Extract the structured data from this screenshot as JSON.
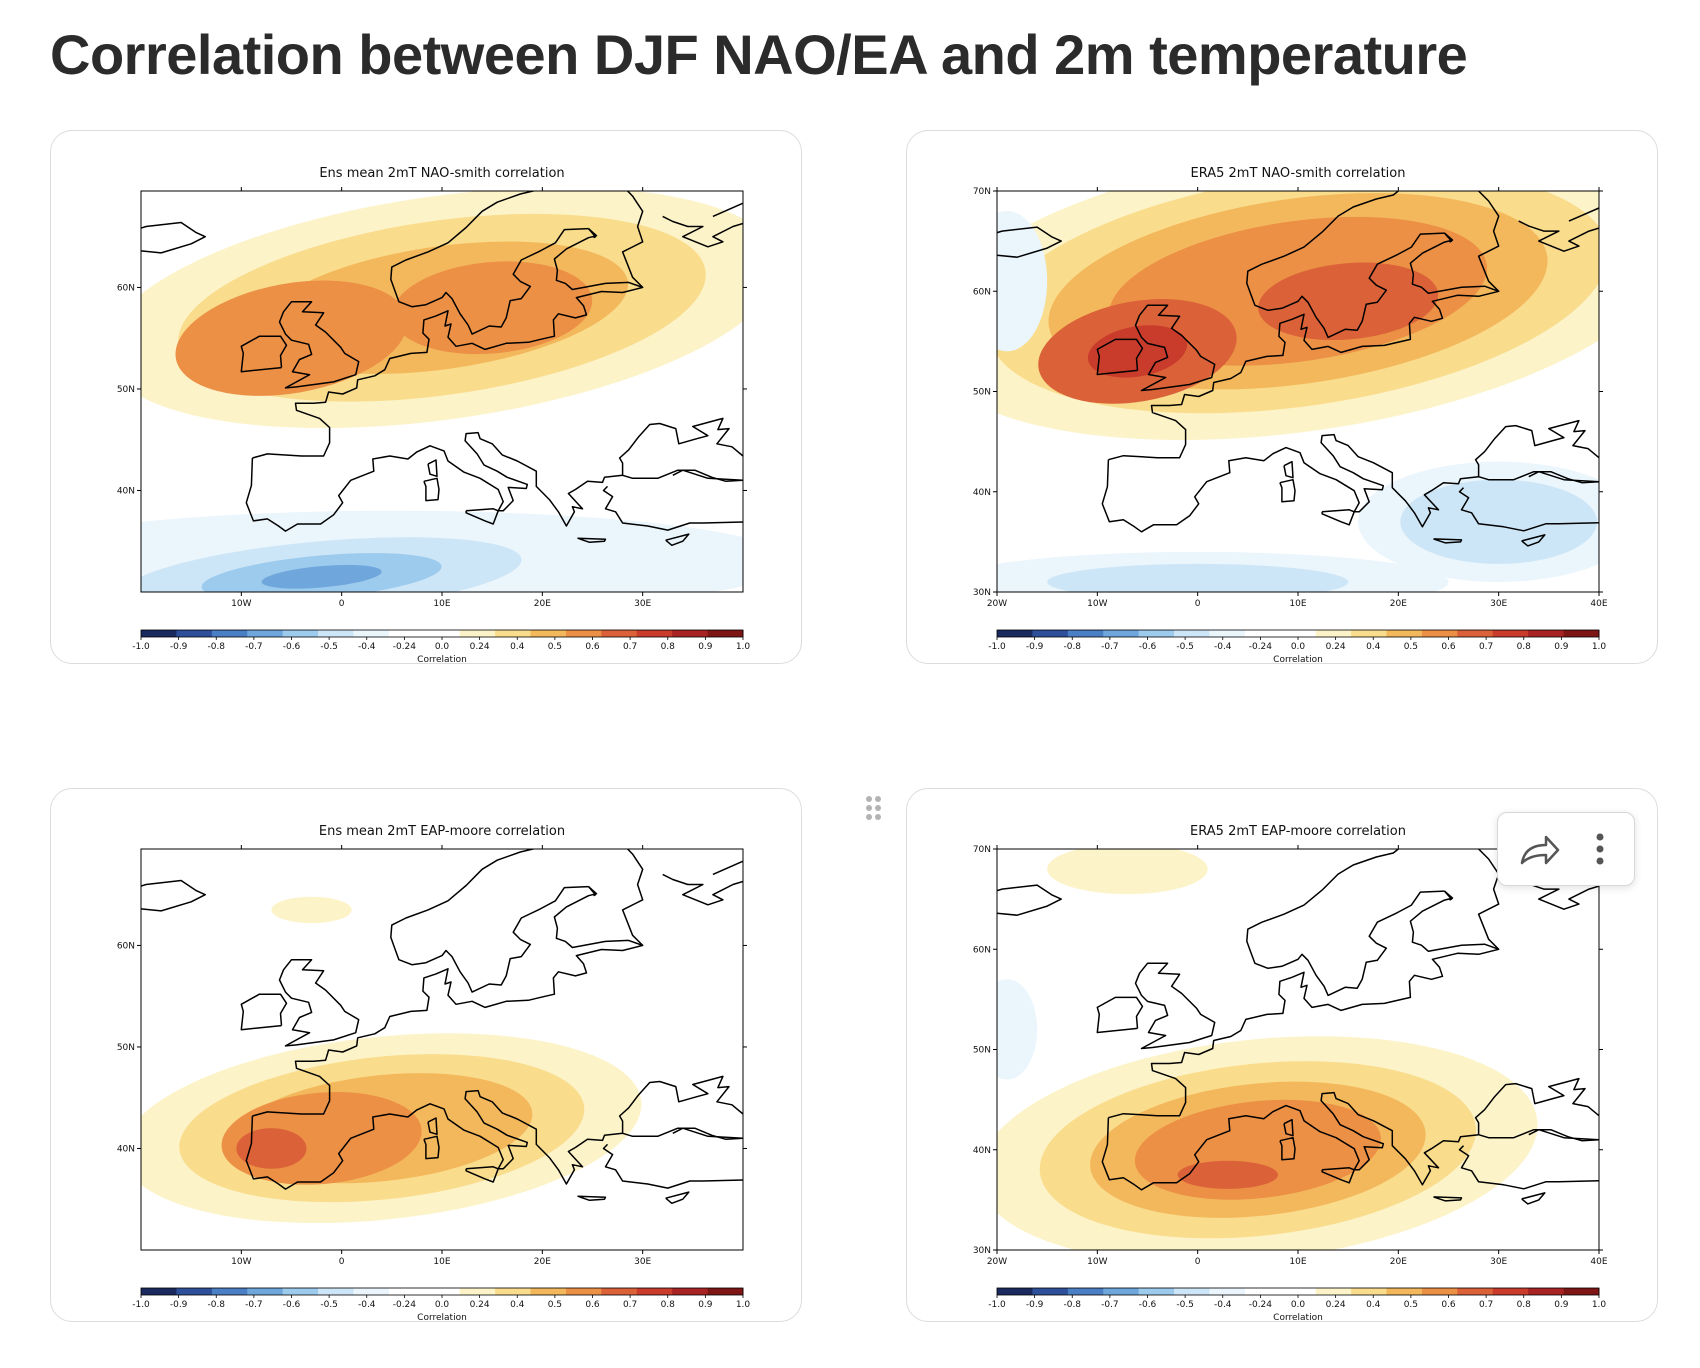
{
  "page": {
    "title": "Correlation between DJF NAO/EA and 2m temperature"
  },
  "panels": [
    {
      "title": "Ens mean 2mT NAO-smith correlation",
      "lat_labels": [
        "60N",
        "50N",
        "40N"
      ],
      "lon_labels": [
        "10W",
        "0",
        "10E",
        "20E",
        "30E"
      ],
      "colorbar_label": "Correlation"
    },
    {
      "title": "ERA5 2mT NAO-smith correlation",
      "lat_labels": [
        "70N",
        "60N",
        "50N",
        "40N",
        "30N"
      ],
      "lon_labels": [
        "20W",
        "10W",
        "0",
        "10E",
        "20E",
        "30E",
        "40E"
      ],
      "colorbar_label": "Correlation"
    },
    {
      "title": "Ens mean 2mT EAP-moore correlation",
      "lat_labels": [
        "60N",
        "50N",
        "40N"
      ],
      "lon_labels": [
        "10W",
        "0",
        "10E",
        "20E",
        "30E"
      ],
      "colorbar_label": "Correlation"
    },
    {
      "title": "ERA5 2mT EAP-moore correlation",
      "lat_labels": [
        "70N",
        "60N",
        "50N",
        "40N",
        "30N"
      ],
      "lon_labels": [
        "20W",
        "10W",
        "0",
        "10E",
        "20E",
        "30E",
        "40E"
      ],
      "colorbar_label": "Correlation"
    }
  ],
  "colorbar": {
    "ticks": [
      "-1.0",
      "-0.9",
      "-0.8",
      "-0.7",
      "-0.6",
      "-0.5",
      "-0.4",
      "-0.24",
      "0.0",
      "0.24",
      "0.4",
      "0.5",
      "0.6",
      "0.7",
      "0.8",
      "0.9",
      "1.0"
    ],
    "colors": [
      "#1b2a5e",
      "#2e4f9a",
      "#4a7ec5",
      "#6fa6dc",
      "#9ccbee",
      "#cde6f7",
      "#eaf5fc",
      "#ffffff",
      "#ffffff",
      "#fdf3c8",
      "#f9dc8c",
      "#f4b85c",
      "#ec9046",
      "#db6238",
      "#c93c2c",
      "#a82323",
      "#7f1616"
    ]
  },
  "toolbar": {
    "share_icon": "share-icon",
    "more_icon": "more-vertical-icon"
  }
}
